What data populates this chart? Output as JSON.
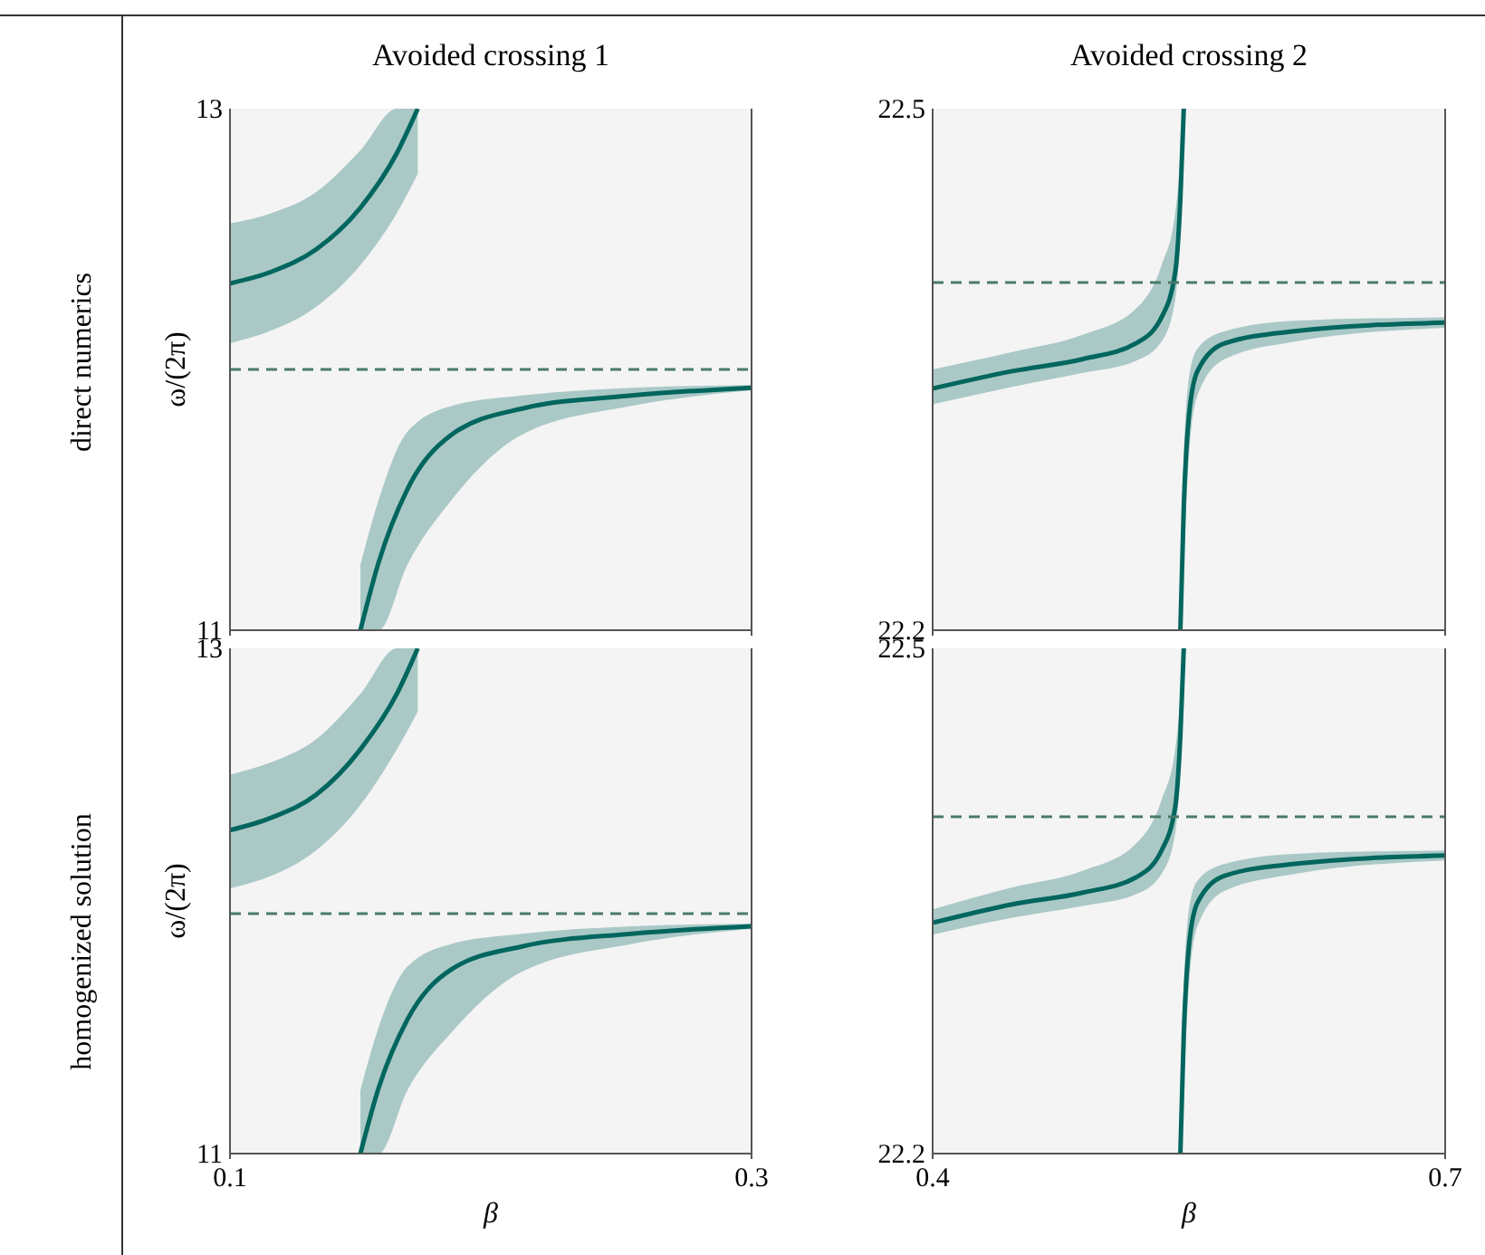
{
  "chart_data": [
    {
      "type": "line",
      "title": "Avoided crossing 1",
      "ylabel": "ω/(2π)",
      "annotations": [
        "direct numerics"
      ],
      "xlim": [
        0.1,
        0.3
      ],
      "ylim": [
        11,
        13
      ],
      "xticks": [
        0.1,
        0.3
      ],
      "yticks": [
        11,
        13
      ],
      "tick_labels": "y",
      "grid": false,
      "line_style": "solid",
      "marker": "none",
      "ref_lines": [
        {
          "axis": "y",
          "value": 12,
          "color": "#4a7a6a",
          "line_style": "dashed"
        }
      ],
      "series": [
        {
          "color": "#01665e",
          "x": [
            0.1,
            0.116,
            0.133,
            0.15,
            0.164,
            0.172
          ],
          "values": [
            12.33,
            12.375,
            12.46,
            12.62,
            12.83,
            13.0
          ],
          "lower": [
            12.1,
            12.15,
            12.24,
            12.4,
            12.6,
            12.75
          ],
          "upper": [
            12.56,
            12.6,
            12.68,
            12.84,
            13.0,
            13.0
          ]
        },
        {
          "color": "#01665e",
          "x": [
            0.15,
            0.157,
            0.168,
            0.185,
            0.212,
            0.254,
            0.3
          ],
          "values": [
            11.0,
            11.26,
            11.54,
            11.75,
            11.85,
            11.9,
            11.93
          ],
          "lower": [
            11.0,
            11.0,
            11.25,
            11.5,
            11.75,
            11.86,
            11.92
          ],
          "upper": [
            11.25,
            11.5,
            11.76,
            11.86,
            11.9,
            11.93,
            11.94
          ]
        }
      ]
    },
    {
      "type": "line",
      "title": "Avoided crossing 2",
      "xlim": [
        0.4,
        0.7
      ],
      "ylim": [
        22.2,
        22.5
      ],
      "xticks": [
        0.4,
        0.7
      ],
      "yticks": [
        22.2,
        22.5
      ],
      "tick_labels": "y",
      "grid": false,
      "line_style": "solid",
      "marker": "none",
      "ref_lines": [
        {
          "axis": "y",
          "value": 22.4,
          "color": "#4a7a6a",
          "line_style": "dashed"
        }
      ],
      "series": [
        {
          "color": "#01665e",
          "x": [
            0.4,
            0.4466,
            0.488,
            0.519,
            0.534,
            0.542,
            0.545,
            0.547
          ],
          "values": [
            22.339,
            22.349,
            22.356,
            22.365,
            22.38,
            22.406,
            22.448,
            22.5
          ],
          "lower": [
            22.33,
            22.34,
            22.348,
            22.355,
            22.366,
            22.39,
            22.43,
            22.48
          ],
          "upper": [
            22.35,
            22.36,
            22.37,
            22.385,
            22.41,
            22.44,
            22.47,
            22.5
          ]
        },
        {
          "color": "#01665e",
          "x": [
            0.545,
            0.547,
            0.55,
            0.555,
            0.571,
            0.612,
            0.7
          ],
          "values": [
            22.2,
            22.271,
            22.323,
            22.349,
            22.365,
            22.372,
            22.377
          ],
          "lower": [
            22.2,
            22.24,
            22.3,
            22.335,
            22.356,
            22.366,
            22.374
          ],
          "upper": [
            22.23,
            22.3,
            22.345,
            22.362,
            22.372,
            22.378,
            22.38
          ]
        }
      ]
    },
    {
      "type": "line",
      "xlabel": "β",
      "ylabel": "ω/(2π)",
      "annotations": [
        "homogenized solution"
      ],
      "xlim": [
        0.1,
        0.3
      ],
      "ylim": [
        11,
        13
      ],
      "xticks": [
        0.1,
        0.3
      ],
      "yticks": [
        11,
        13
      ],
      "grid": false,
      "line_style": "solid",
      "marker": "none",
      "ref_lines": [
        {
          "axis": "y",
          "value": 11.95,
          "color": "#4a7a6a",
          "line_style": "dashed"
        }
      ],
      "series": [
        {
          "color": "#01665e",
          "x": [
            0.1,
            0.116,
            0.133,
            0.15,
            0.164,
            0.172
          ],
          "values": [
            12.28,
            12.33,
            12.42,
            12.6,
            12.82,
            13.0
          ],
          "lower": [
            12.05,
            12.1,
            12.2,
            12.38,
            12.6,
            12.75
          ],
          "upper": [
            12.5,
            12.55,
            12.64,
            12.82,
            13.0,
            13.0
          ]
        },
        {
          "color": "#01665e",
          "x": [
            0.15,
            0.157,
            0.168,
            0.185,
            0.212,
            0.254,
            0.3
          ],
          "values": [
            11.0,
            11.26,
            11.53,
            11.73,
            11.82,
            11.87,
            11.9
          ],
          "lower": [
            11.0,
            11.0,
            11.25,
            11.48,
            11.72,
            11.83,
            11.89
          ],
          "upper": [
            11.25,
            11.5,
            11.74,
            11.83,
            11.87,
            11.9,
            11.91
          ]
        }
      ]
    },
    {
      "type": "line",
      "xlabel": "β",
      "xlim": [
        0.4,
        0.7
      ],
      "ylim": [
        22.2,
        22.5
      ],
      "xticks": [
        0.4,
        0.7
      ],
      "yticks": [
        22.2,
        22.5
      ],
      "grid": false,
      "line_style": "solid",
      "marker": "none",
      "ref_lines": [
        {
          "axis": "y",
          "value": 22.4,
          "color": "#4a7a6a",
          "line_style": "dashed"
        }
      ],
      "series": [
        {
          "color": "#01665e",
          "x": [
            0.4,
            0.4466,
            0.488,
            0.519,
            0.534,
            0.542,
            0.545,
            0.547
          ],
          "values": [
            22.337,
            22.348,
            22.355,
            22.364,
            22.38,
            22.406,
            22.448,
            22.5
          ],
          "lower": [
            22.33,
            22.34,
            22.347,
            22.354,
            22.366,
            22.39,
            22.43,
            22.48
          ],
          "upper": [
            22.345,
            22.358,
            22.368,
            22.384,
            22.41,
            22.44,
            22.47,
            22.5
          ]
        },
        {
          "color": "#01665e",
          "x": [
            0.545,
            0.547,
            0.55,
            0.555,
            0.571,
            0.612,
            0.7
          ],
          "values": [
            22.2,
            22.271,
            22.323,
            22.349,
            22.365,
            22.372,
            22.377
          ],
          "lower": [
            22.2,
            22.24,
            22.3,
            22.335,
            22.356,
            22.366,
            22.374
          ],
          "upper": [
            22.23,
            22.3,
            22.345,
            22.362,
            22.372,
            22.378,
            22.38
          ]
        }
      ]
    }
  ]
}
